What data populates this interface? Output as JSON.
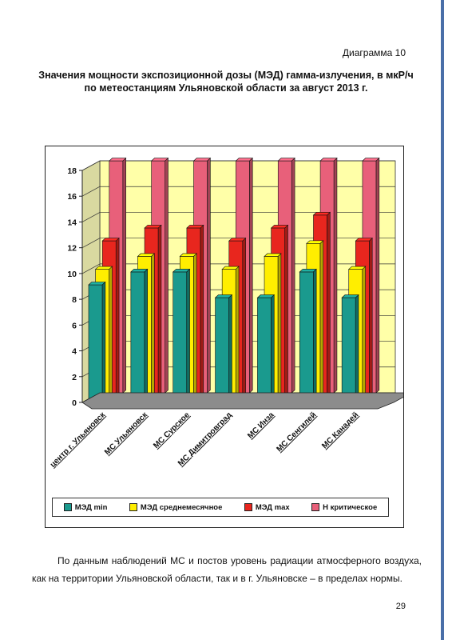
{
  "diagram_label": "Диаграмма 10",
  "title_line1": "Значения мощности экспозиционной дозы (МЭД) гамма-излучения, в мкР/ч",
  "title_line2": "по метеостанциям Ульяновской области за август 2013 г.",
  "chart_data": {
    "type": "bar",
    "categories": [
      "центр г. Ульяновск",
      "МС Ульяновск",
      "МС Сурское",
      "МС Димитровград",
      "МС Инза",
      "МС Сенгилей",
      "МС Канадей"
    ],
    "series": [
      {
        "name": "МЭД min",
        "values": [
          9,
          10,
          10,
          8,
          8,
          10,
          8
        ],
        "color": "#1a9a8e"
      },
      {
        "name": "МЭД среднемесячное",
        "values": [
          10,
          11,
          11,
          10,
          11,
          12,
          10
        ],
        "color": "#ffee00"
      },
      {
        "name": "МЭД max",
        "values": [
          12,
          13,
          13,
          12,
          13,
          14,
          12
        ],
        "color": "#e8261e"
      },
      {
        "name": "Н критическое",
        "values": [
          18,
          18,
          18,
          18,
          18,
          18,
          18
        ],
        "color": "#e8607a"
      }
    ],
    "ylim": [
      0,
      18
    ],
    "yticks": [
      "0",
      "2",
      "4",
      "6",
      "8",
      "10",
      "12",
      "14",
      "16",
      "18"
    ],
    "grid": true,
    "legend_position": "bottom",
    "wall_color": "#ffffa8",
    "floor_color": "#8c8c8c"
  },
  "conclusion": "По данным наблюдений МС и постов уровень радиации атмосферного воздуха, как на территории Ульяновской области, так и в г. Ульяновске – в пределах нормы.",
  "page_number": "29"
}
